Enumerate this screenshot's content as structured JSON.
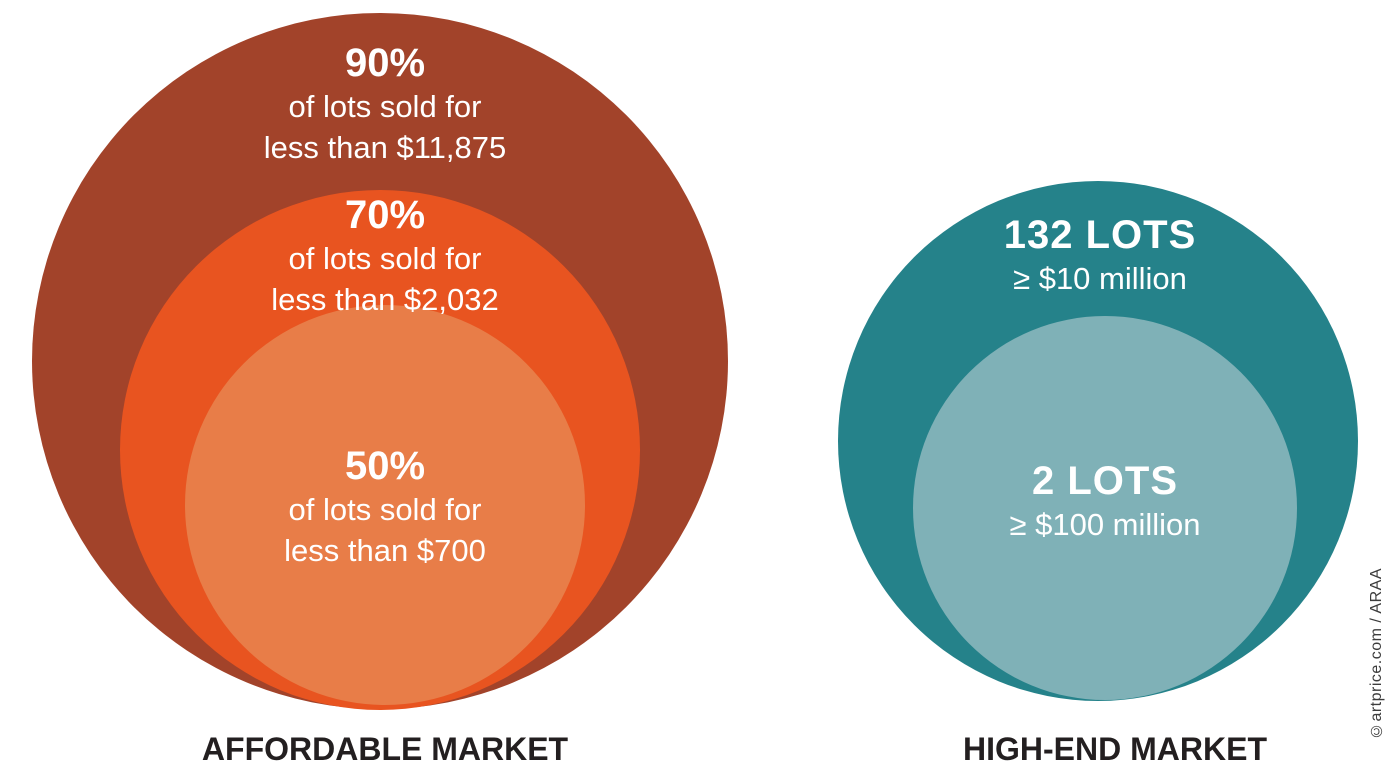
{
  "page": {
    "background_color": "#FFFFFF",
    "text_on_circles_color": "#FFFFFF",
    "label_color": "#231F20",
    "credit_color": "#3C3C3C"
  },
  "chart_data": {
    "type": "nested-circles",
    "description": "Proportional nested-circle infographic comparing the affordable art market price distribution with the high-end art market lot counts",
    "groups": [
      {
        "label": "AFFORDABLE MARKET",
        "rings": [
          {
            "headline": "90%",
            "line1": "of lots sold for",
            "line2": "less than $11,875",
            "color": "#A2432A",
            "share_pct": 90,
            "price_threshold_usd": 11875
          },
          {
            "headline": "70%",
            "line1": "of lots sold for",
            "line2": "less than $2,032",
            "color": "#E85420",
            "share_pct": 70,
            "price_threshold_usd": 2032
          },
          {
            "headline": "50%",
            "line1": "of lots sold for",
            "line2": "less than $700",
            "color": "#E87D48",
            "share_pct": 50,
            "price_threshold_usd": 700
          }
        ]
      },
      {
        "label": "HIGH-END MARKET",
        "rings": [
          {
            "headline": "132 LOTS",
            "line1": "≥ $10 million",
            "color": "#25828A",
            "lots": 132
          },
          {
            "headline": "2 LOTS",
            "line1": "≥ $100 million",
            "color": "#7FB1B7",
            "lots": 2
          }
        ]
      }
    ],
    "credit": "©artprice.com / ARAA",
    "legend_position": "none",
    "grid": false
  }
}
